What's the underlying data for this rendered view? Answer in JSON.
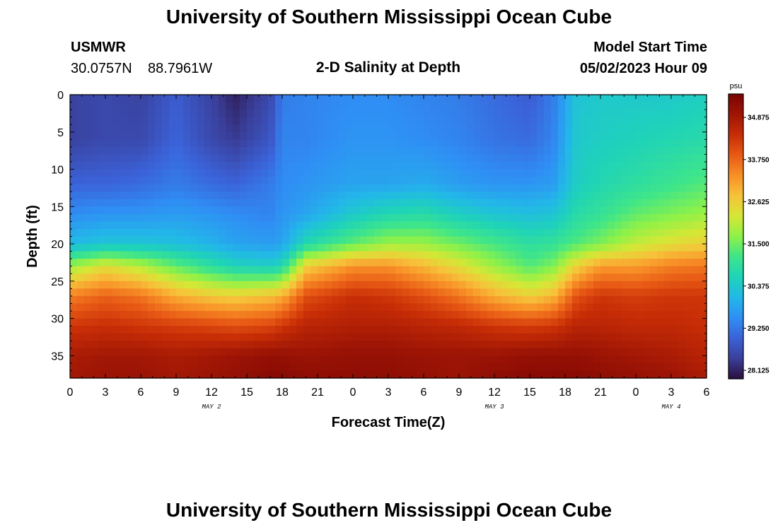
{
  "page": {
    "title_top": "University of Southern Mississippi Ocean Cube",
    "title_bottom": "University of Southern Mississippi Ocean Cube",
    "station": {
      "name": "USMWR",
      "lat": "30.0757N",
      "lon": "88.7961W"
    },
    "model": {
      "label": "Model Start Time",
      "value": "05/02/2023 Hour 09"
    }
  },
  "chart_data": {
    "type": "heatmap",
    "title": "2-D Salinity at Depth",
    "xlabel": "Forecast Time(Z)",
    "ylabel": "Depth (ft)",
    "x_ticks": [
      "0",
      "3",
      "6",
      "9",
      "12",
      "15",
      "18",
      "21",
      "0",
      "3",
      "6",
      "9",
      "12",
      "15",
      "18",
      "21",
      "0",
      "3",
      "6"
    ],
    "x_range_hours": [
      0,
      54
    ],
    "y_ticks": [
      0,
      5,
      10,
      15,
      20,
      25,
      30,
      35
    ],
    "y_range_ft": [
      0,
      38
    ],
    "date_labels": [
      {
        "label": "MAY 2",
        "hour": 12
      },
      {
        "label": "MAY 3",
        "hour": 36
      },
      {
        "label": "MAY 4",
        "hour": 51
      }
    ],
    "colorbar": {
      "units": "psu",
      "min": 27.9,
      "max": 35.5,
      "ticks": [
        "28.125",
        "29.250",
        "30.375",
        "31.500",
        "32.625",
        "33.750",
        "34.875"
      ],
      "colors": [
        "#2a0f3e",
        "#3a3f9a",
        "#3b62d8",
        "#2f8ff4",
        "#22b8e8",
        "#1fd3b8",
        "#3ee58a",
        "#8ef148",
        "#d5e736",
        "#f7c23a",
        "#f88f27",
        "#e85a15",
        "#c72d06",
        "#9e1505",
        "#7a0403"
      ]
    },
    "profiles": {
      "hours": [
        0,
        3,
        6,
        9,
        12,
        14,
        17,
        18,
        20,
        24,
        27,
        30,
        33,
        36,
        39,
        41,
        43,
        45,
        48,
        51,
        54
      ],
      "depths_ft": [
        0,
        6,
        12,
        16,
        20,
        23,
        27,
        31,
        35,
        38
      ],
      "salinity_psu": [
        [
          28.5,
          28.5,
          29.0,
          29.5,
          30.1,
          31.8,
          33.5,
          34.3,
          34.8,
          34.9
        ],
        [
          28.6,
          28.6,
          29.0,
          29.6,
          30.3,
          32.4,
          33.8,
          34.4,
          34.9,
          35.0
        ],
        [
          28.5,
          28.6,
          29.1,
          29.6,
          30.3,
          32.0,
          33.6,
          34.3,
          34.9,
          35.0
        ],
        [
          28.9,
          29.0,
          29.3,
          29.7,
          30.2,
          31.4,
          33.0,
          34.2,
          34.8,
          34.9
        ],
        [
          28.5,
          28.6,
          29.1,
          29.6,
          30.0,
          30.9,
          32.7,
          34.1,
          34.9,
          35.0
        ],
        [
          28.1,
          28.4,
          29.0,
          29.5,
          29.8,
          30.6,
          32.6,
          34.0,
          35.0,
          35.1
        ],
        [
          28.6,
          28.8,
          29.3,
          29.4,
          29.7,
          30.5,
          32.8,
          34.1,
          35.1,
          35.3
        ],
        [
          29.3,
          29.4,
          29.5,
          29.6,
          29.8,
          30.7,
          33.0,
          34.3,
          35.1,
          35.3
        ],
        [
          29.4,
          29.4,
          29.6,
          29.8,
          30.7,
          32.6,
          34.0,
          34.6,
          35.0,
          35.2
        ],
        [
          29.5,
          29.6,
          29.8,
          30.4,
          31.4,
          33.3,
          34.4,
          34.7,
          35.1,
          35.2
        ],
        [
          29.5,
          29.6,
          29.8,
          30.7,
          31.8,
          33.3,
          34.3,
          34.7,
          35.1,
          35.2
        ],
        [
          29.4,
          29.5,
          29.9,
          30.8,
          31.8,
          32.9,
          34.0,
          34.6,
          35.0,
          35.1
        ],
        [
          29.3,
          29.4,
          29.7,
          30.5,
          31.5,
          32.4,
          33.6,
          34.5,
          35.0,
          35.0
        ],
        [
          29.1,
          29.2,
          29.6,
          30.3,
          31.2,
          31.8,
          33.0,
          34.3,
          35.0,
          35.2
        ],
        [
          28.9,
          29.1,
          29.6,
          30.2,
          30.9,
          31.3,
          32.6,
          34.2,
          35.1,
          35.3
        ],
        [
          29.3,
          29.4,
          29.7,
          30.3,
          31.0,
          31.6,
          32.9,
          34.3,
          35.1,
          35.3
        ],
        [
          30.3,
          30.4,
          30.5,
          30.8,
          31.3,
          32.6,
          34.0,
          34.6,
          35.1,
          35.3
        ],
        [
          30.4,
          30.5,
          30.7,
          31.0,
          31.6,
          33.2,
          34.3,
          34.6,
          35.0,
          35.2
        ],
        [
          30.4,
          30.6,
          30.9,
          31.4,
          32.1,
          33.2,
          34.2,
          34.5,
          34.9,
          35.1
        ],
        [
          30.4,
          30.7,
          31.1,
          31.6,
          32.4,
          33.5,
          34.3,
          34.5,
          34.8,
          35.0
        ],
        [
          30.5,
          30.8,
          31.3,
          31.8,
          32.6,
          33.6,
          34.3,
          34.4,
          34.6,
          34.8
        ]
      ]
    }
  }
}
